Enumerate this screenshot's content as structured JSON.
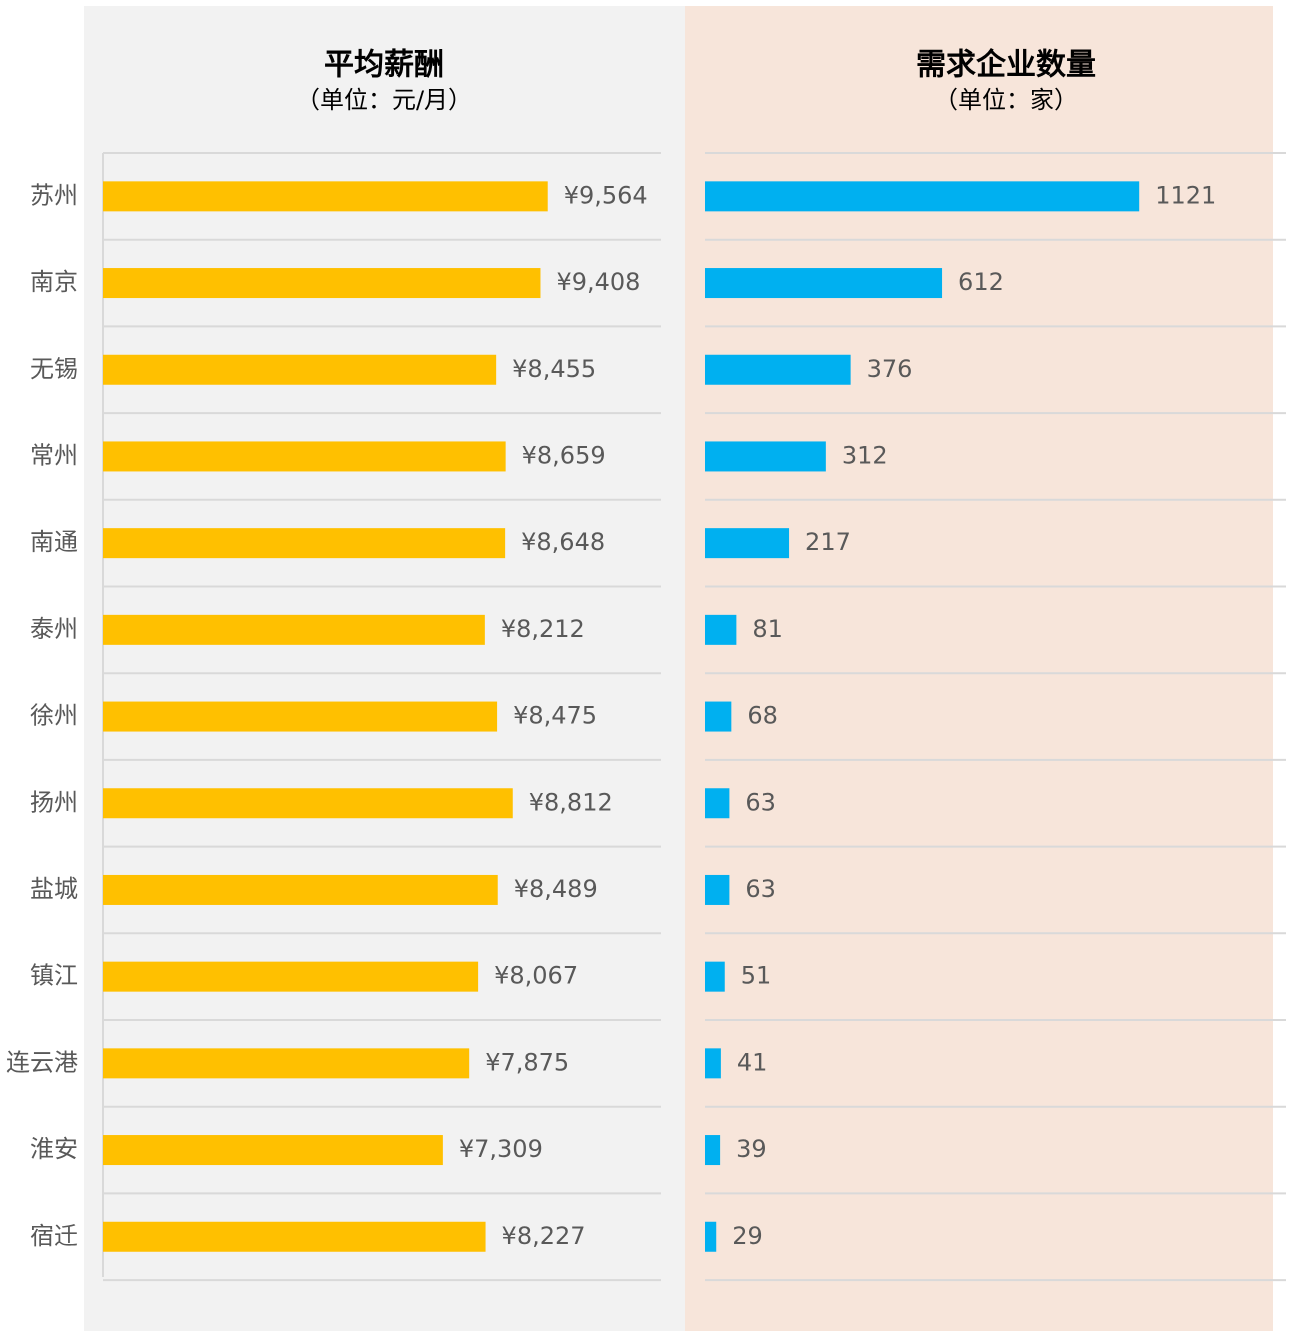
{
  "chart_data": [
    {
      "type": "bar",
      "orientation": "horizontal",
      "title": "平均薪酬",
      "subtitle": "（单位：元/月）",
      "categories": [
        "苏州",
        "南京",
        "无锡",
        "常州",
        "南通",
        "泰州",
        "徐州",
        "扬州",
        "盐城",
        "镇江",
        "连云港",
        "淮安",
        "宿迁"
      ],
      "values": [
        9564,
        9408,
        8455,
        8659,
        8648,
        8212,
        8475,
        8812,
        8489,
        8067,
        7875,
        7309,
        8227
      ],
      "value_labels": [
        "¥9,564",
        "¥9,408",
        "¥8,455",
        "¥8,659",
        "¥8,648",
        "¥8,212",
        "¥8,475",
        "¥8,812",
        "¥8,489",
        "¥8,067",
        "¥7,875",
        "¥7,309",
        "¥8,227"
      ],
      "color": "#ffc000",
      "xlim": [
        0,
        12000
      ]
    },
    {
      "type": "bar",
      "orientation": "horizontal",
      "title": "需求企业数量",
      "subtitle": "（单位：家）",
      "values": [
        1121,
        612,
        376,
        312,
        217,
        81,
        68,
        63,
        63,
        51,
        41,
        39,
        29
      ],
      "color": "#00b0f0",
      "xlim": [
        0,
        1500
      ]
    }
  ]
}
